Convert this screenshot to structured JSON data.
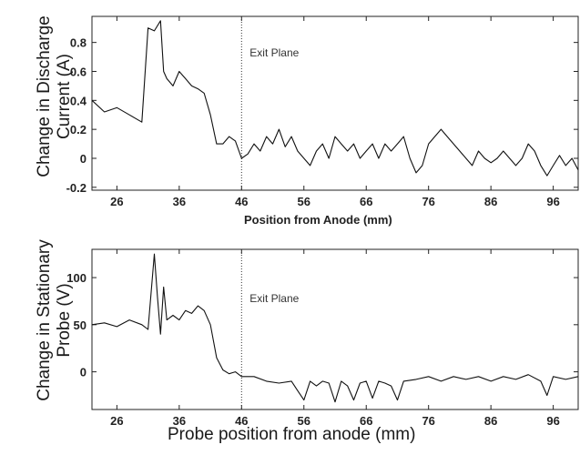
{
  "figure": {
    "ylabel_top": "Change in Discharge\nCurrent (A)",
    "ylabel_bottom": "Change in Stationary\nProbe (V)"
  },
  "chart_data": [
    {
      "type": "line",
      "xlabel": "Position from Anode (mm)",
      "ylabel": "Change in Discharge Current (A)",
      "xlim": [
        22,
        100
      ],
      "ylim": [
        -0.22,
        0.98
      ],
      "xticks": [
        26,
        36,
        46,
        56,
        66,
        76,
        86,
        96
      ],
      "yticks": [
        -0.2,
        0,
        0.2,
        0.4,
        0.6,
        0.8
      ],
      "ytick_labels": [
        "-0.2",
        "0",
        "0.2",
        "0.4",
        "0.6",
        "0.8"
      ],
      "annotation": {
        "text": "Exit Plane",
        "x": 46
      },
      "series": [
        {
          "x": [
            22,
            24,
            26,
            28,
            30,
            31,
            32,
            33,
            33.5,
            34,
            35,
            36,
            37,
            38,
            39,
            40,
            41,
            42,
            43,
            44,
            45,
            46,
            47,
            48,
            49,
            50,
            51,
            52,
            53,
            54,
            55,
            56,
            57,
            58,
            59,
            60,
            61,
            62,
            63,
            64,
            65,
            66,
            67,
            68,
            69,
            70,
            71,
            72,
            73,
            74,
            75,
            76,
            77,
            78,
            79,
            80,
            81,
            82,
            83,
            84,
            85,
            86,
            87,
            88,
            89,
            90,
            91,
            92,
            93,
            94,
            95,
            96,
            97,
            98,
            99,
            100
          ],
          "values": [
            0.4,
            0.32,
            0.35,
            0.3,
            0.25,
            0.9,
            0.88,
            0.95,
            0.6,
            0.55,
            0.5,
            0.6,
            0.55,
            0.5,
            0.48,
            0.45,
            0.3,
            0.1,
            0.1,
            0.15,
            0.12,
            0.0,
            0.03,
            0.1,
            0.05,
            0.15,
            0.1,
            0.2,
            0.08,
            0.15,
            0.05,
            0.0,
            -0.05,
            0.05,
            0.1,
            0.0,
            0.15,
            0.1,
            0.05,
            0.1,
            0.0,
            0.05,
            0.1,
            0.0,
            0.1,
            0.05,
            0.1,
            0.15,
            0.0,
            -0.1,
            -0.05,
            0.1,
            0.15,
            0.2,
            0.15,
            0.1,
            0.05,
            0.0,
            -0.05,
            0.05,
            0.0,
            -0.03,
            0.0,
            0.05,
            0.0,
            -0.05,
            0.0,
            0.1,
            0.05,
            -0.05,
            -0.12,
            -0.05,
            0.02,
            -0.05,
            0.0,
            -0.08
          ]
        }
      ]
    },
    {
      "type": "line",
      "xlabel": "Probe position from anode (mm)",
      "ylabel": "Change in Stationary Probe (V)",
      "xlim": [
        22,
        100
      ],
      "ylim": [
        -40,
        130
      ],
      "xticks": [
        26,
        36,
        46,
        56,
        66,
        76,
        86,
        96
      ],
      "yticks": [
        0,
        50,
        100
      ],
      "ytick_labels": [
        "0",
        "50",
        "100"
      ],
      "annotation": {
        "text": "Exit Plane",
        "x": 46
      },
      "series": [
        {
          "x": [
            22,
            24,
            26,
            28,
            30,
            31,
            32,
            32.5,
            33,
            33.5,
            34,
            35,
            36,
            37,
            38,
            39,
            40,
            41,
            42,
            43,
            44,
            45,
            46,
            48,
            50,
            52,
            54,
            55,
            56,
            57,
            58,
            59,
            60,
            61,
            62,
            63,
            64,
            65,
            66,
            67,
            68,
            69,
            70,
            71,
            72,
            74,
            76,
            78,
            80,
            82,
            84,
            86,
            88,
            90,
            92,
            94,
            95,
            96,
            98,
            100
          ],
          "values": [
            50,
            52,
            48,
            55,
            50,
            45,
            125,
            80,
            40,
            90,
            55,
            60,
            55,
            65,
            62,
            70,
            65,
            50,
            15,
            2,
            -2,
            0,
            -5,
            -5,
            -10,
            -12,
            -10,
            -20,
            -30,
            -10,
            -15,
            -10,
            -12,
            -32,
            -10,
            -15,
            -30,
            -12,
            -10,
            -28,
            -10,
            -12,
            -15,
            -30,
            -10,
            -8,
            -5,
            -10,
            -5,
            -8,
            -5,
            -10,
            -5,
            -8,
            -3,
            -10,
            -25,
            -5,
            -8,
            -5
          ]
        }
      ]
    }
  ]
}
